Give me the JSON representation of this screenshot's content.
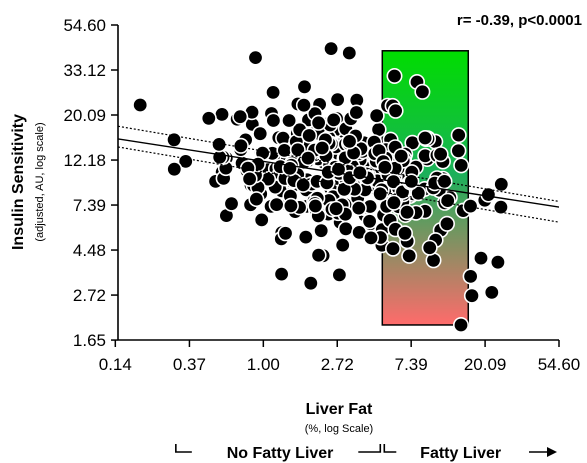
{
  "chart_data": {
    "type": "scatter",
    "annotation": "r= -0.39, p<0.0001",
    "ylabel": "Insulin Sensitivity",
    "ylabel_sub": "(adjusted, AU, log scale)",
    "xlabel": "Liver Fat",
    "xlabel_sub": "(%, log Scale)",
    "x_scale": "log",
    "y_scale": "log",
    "xlim": [
      0.14,
      54.6
    ],
    "ylim": [
      1.65,
      54.6
    ],
    "x_ticks": [
      "0.14",
      "0.37",
      "1.00",
      "2.72",
      "7.39",
      "20.09",
      "54.60"
    ],
    "x_tick_values": [
      0.135,
      0.368,
      1.0,
      2.718,
      7.389,
      20.09,
      54.6
    ],
    "y_ticks": [
      "54.60",
      "33.12",
      "20.09",
      "12.18",
      "7.39",
      "4.48",
      "2.72",
      "1.65"
    ],
    "y_tick_values": [
      54.6,
      33.12,
      20.09,
      12.18,
      7.389,
      4.482,
      2.718,
      1.649
    ],
    "grid": false,
    "regression": {
      "slope": -0.127,
      "intercept": 2.485
    },
    "regression_band": {
      "slope": -0.14,
      "upper_intercept": 2.6,
      "lower_intercept": 2.37
    },
    "fatty_liver_zone": {
      "x_range": [
        5.0,
        16.0
      ],
      "y_range": [
        1.95,
        41.0
      ],
      "color_top": "#00dd00",
      "color_bottom": "#ff6b6b"
    },
    "ranges": [
      {
        "label": "No Fatty Liver",
        "x_from": 0.37,
        "x_to": 5.0,
        "arrow": false
      },
      {
        "label": "Fatty Liver",
        "x_from": 5.0,
        "x_to": 54.6,
        "arrow": true
      }
    ],
    "marker_color": "#000000",
    "marker_edge": "#ffffff"
  }
}
